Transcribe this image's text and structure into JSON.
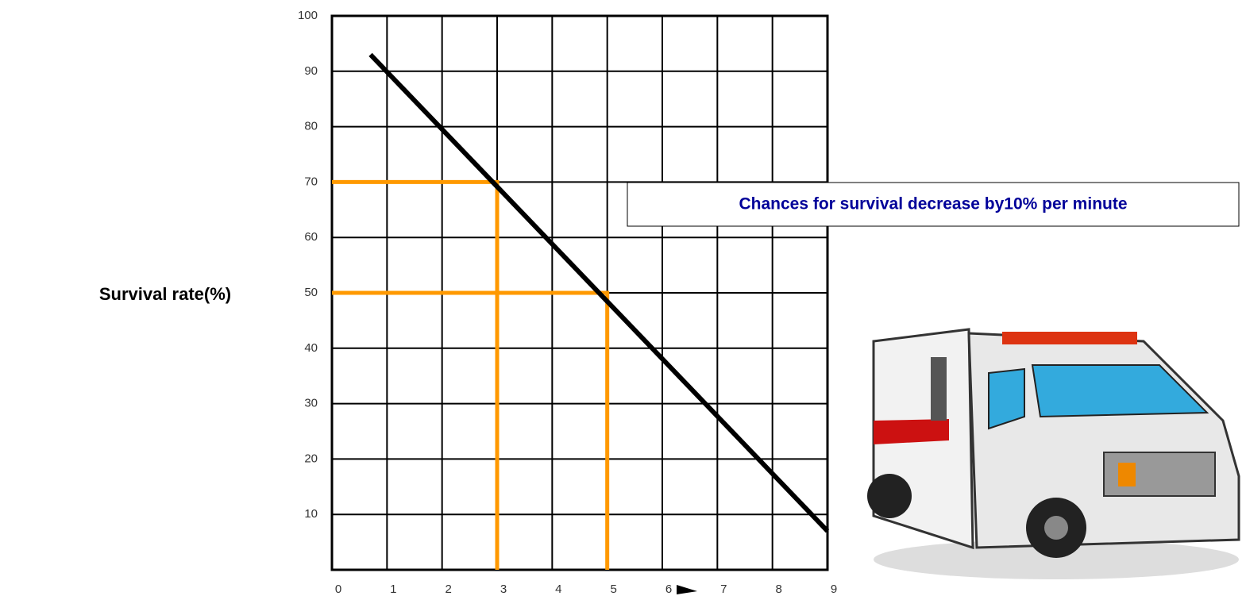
{
  "chart_data": {
    "type": "line",
    "y_label": "Survival rate(%)",
    "annotation": "Chances for survival decrease by10% per minute",
    "x": [
      0.7,
      9
    ],
    "series": [
      {
        "color": "#000000",
        "values": [
          93,
          7
        ]
      }
    ],
    "reference_points": {
      "color": "#ff9900",
      "x": [
        3,
        5
      ],
      "values": [
        70,
        50
      ]
    },
    "xlim": [
      0,
      9
    ],
    "xticks": [
      0,
      1,
      2,
      3,
      4,
      5,
      6,
      7,
      8,
      9
    ],
    "ylim": [
      0,
      100
    ],
    "yticks": [
      10,
      20,
      30,
      40,
      50,
      60,
      70,
      80,
      90,
      100
    ],
    "grid": true
  }
}
